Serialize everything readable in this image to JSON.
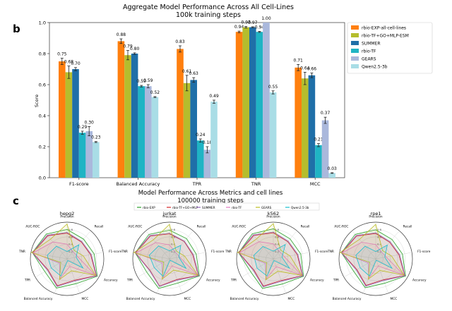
{
  "chart_data": [
    {
      "type": "bar",
      "panel_label": "b",
      "title": "Aggregate Model Performance Across All Cell-Lines",
      "subtitle": "100k training steps",
      "ylabel": "Score",
      "xlabel": "",
      "ylim": [
        0,
        1.0
      ],
      "yticks": [
        "0.0",
        "0.2",
        "0.4",
        "0.6",
        "0.8",
        "1.0"
      ],
      "categories": [
        "F1-score",
        "Balanced Accuracy",
        "TPR",
        "TNR",
        "MCC"
      ],
      "legend_position": "upper-right-outside",
      "series": [
        {
          "name": "rbio-EXP-all-cell-lines",
          "color": "#ff7f0e",
          "values": [
            0.75,
            0.88,
            0.83,
            0.94,
            0.71
          ],
          "labels": [
            "0.75",
            "0.88",
            "0.83",
            "0.94",
            "0.71"
          ],
          "errors": [
            0.02,
            0.015,
            0.02,
            0.005,
            0.02
          ]
        },
        {
          "name": "rbio-TF+GO+MLP-ESM",
          "color": "#b5bd2d",
          "values": [
            0.68,
            0.79,
            0.61,
            0.97,
            0.64
          ],
          "labels": [
            "0.68",
            "0.79",
            "0.61",
            "0.97",
            "0.64"
          ],
          "errors": [
            0.04,
            0.03,
            0.05,
            0.005,
            0.04
          ]
        },
        {
          "name": "SUMMER",
          "color": "#1f6fa8",
          "values": [
            0.7,
            0.8,
            0.63,
            0.97,
            0.66
          ],
          "labels": [
            "0.70",
            "0.80",
            "0.63",
            "0.97",
            "0.66"
          ],
          "errors": [
            0.01,
            0.005,
            0.015,
            0.003,
            0.015
          ]
        },
        {
          "name": "rbio-TF",
          "color": "#1fb4c4",
          "values": [
            0.29,
            0.59,
            0.24,
            0.94,
            0.21
          ],
          "labels": [
            "0.29",
            "0.59",
            "0.24",
            "0.94",
            "0.21"
          ],
          "errors": [
            0.01,
            0.005,
            0.01,
            0.003,
            0.01
          ]
        },
        {
          "name": "GEARS",
          "color": "#aab8dc",
          "values": [
            0.3,
            0.59,
            0.18,
            1.0,
            0.37
          ],
          "labels": [
            "0.30",
            "0.59",
            "0.18",
            "1.00",
            "0.37"
          ],
          "errors": [
            0.03,
            0.01,
            0.02,
            0.0,
            0.02
          ]
        },
        {
          "name": "Qwen2.5-3b",
          "color": "#a9dde6",
          "values": [
            0.23,
            0.52,
            0.49,
            0.55,
            0.03
          ],
          "labels": [
            "0.23",
            "0.52",
            "0.49",
            "0.55",
            "0.03"
          ],
          "errors": [
            0.003,
            0.003,
            0.01,
            0.01,
            0.002
          ]
        }
      ]
    },
    {
      "type": "radar",
      "panel_label": "c",
      "title": "Model Performance Across Metrics and cell lines",
      "subtitle": "100000 training steps",
      "axes": [
        "Precision",
        "Recall",
        "F1-score",
        "Accuracy",
        "MCC",
        "Balanced Accuracy",
        "TPR",
        "TNR",
        "AUC-ROC"
      ],
      "radial_ticks": [
        "0.2",
        "0.4",
        "0.6",
        "0.8"
      ],
      "legend": [
        {
          "name": "rbio-EXP",
          "color": "#2ca02c"
        },
        {
          "name": "rbio-TF+GO+MLP",
          "color": "#d62728"
        },
        {
          "name": "SUMMER",
          "color": "#9467bd"
        },
        {
          "name": "rbio-TF",
          "color": "#e377c2"
        },
        {
          "name": "GEARS",
          "color": "#bcbd22"
        },
        {
          "name": "Qwen2.5-3b",
          "color": "#17becf"
        }
      ],
      "cell_lines": [
        {
          "name": "hepg2",
          "series": [
            [
              0.8,
              0.7,
              0.75,
              0.95,
              0.72,
              0.85,
              0.7,
              0.96,
              0.88
            ],
            [
              0.7,
              0.6,
              0.65,
              0.92,
              0.62,
              0.78,
              0.6,
              0.95,
              0.82
            ],
            [
              0.72,
              0.62,
              0.67,
              0.93,
              0.64,
              0.8,
              0.62,
              0.96,
              0.84
            ],
            [
              0.4,
              0.25,
              0.3,
              0.88,
              0.22,
              0.58,
              0.24,
              0.94,
              0.6
            ],
            [
              0.95,
              0.3,
              0.45,
              0.9,
              0.35,
              0.6,
              0.2,
              0.99,
              0.7
            ],
            [
              0.2,
              0.5,
              0.25,
              0.5,
              0.05,
              0.5,
              0.5,
              0.55,
              0.45
            ]
          ]
        },
        {
          "name": "jurkat",
          "series": [
            [
              0.78,
              0.72,
              0.74,
              0.94,
              0.7,
              0.86,
              0.72,
              0.95,
              0.87
            ],
            [
              0.68,
              0.62,
              0.64,
              0.91,
              0.6,
              0.79,
              0.62,
              0.94,
              0.81
            ],
            [
              0.7,
              0.63,
              0.66,
              0.92,
              0.62,
              0.8,
              0.63,
              0.95,
              0.83
            ],
            [
              0.38,
              0.24,
              0.28,
              0.87,
              0.21,
              0.57,
              0.23,
              0.93,
              0.58
            ],
            [
              0.94,
              0.28,
              0.42,
              0.89,
              0.33,
              0.59,
              0.18,
              0.99,
              0.68
            ],
            [
              0.22,
              0.48,
              0.26,
              0.52,
              0.04,
              0.51,
              0.48,
              0.56,
              0.46
            ]
          ]
        },
        {
          "name": "k562",
          "series": [
            [
              0.82,
              0.71,
              0.76,
              0.95,
              0.73,
              0.86,
              0.71,
              0.96,
              0.89
            ],
            [
              0.71,
              0.61,
              0.66,
              0.92,
              0.63,
              0.79,
              0.61,
              0.95,
              0.83
            ],
            [
              0.73,
              0.63,
              0.68,
              0.93,
              0.65,
              0.81,
              0.63,
              0.96,
              0.85
            ],
            [
              0.41,
              0.26,
              0.31,
              0.88,
              0.23,
              0.59,
              0.25,
              0.94,
              0.61
            ],
            [
              0.96,
              0.31,
              0.46,
              0.9,
              0.36,
              0.61,
              0.21,
              0.99,
              0.71
            ],
            [
              0.21,
              0.51,
              0.24,
              0.51,
              0.05,
              0.5,
              0.51,
              0.54,
              0.44
            ]
          ]
        },
        {
          "name": "rpe1",
          "series": [
            [
              0.79,
              0.69,
              0.74,
              0.94,
              0.71,
              0.84,
              0.69,
              0.95,
              0.87
            ],
            [
              0.69,
              0.59,
              0.64,
              0.91,
              0.61,
              0.77,
              0.59,
              0.94,
              0.81
            ],
            [
              0.71,
              0.61,
              0.66,
              0.92,
              0.63,
              0.79,
              0.61,
              0.95,
              0.83
            ],
            [
              0.39,
              0.24,
              0.29,
              0.87,
              0.21,
              0.57,
              0.23,
              0.93,
              0.59
            ],
            [
              0.94,
              0.29,
              0.44,
              0.89,
              0.34,
              0.59,
              0.19,
              0.99,
              0.69
            ],
            [
              0.2,
              0.49,
              0.25,
              0.51,
              0.04,
              0.5,
              0.49,
              0.55,
              0.45
            ]
          ]
        }
      ]
    }
  ]
}
